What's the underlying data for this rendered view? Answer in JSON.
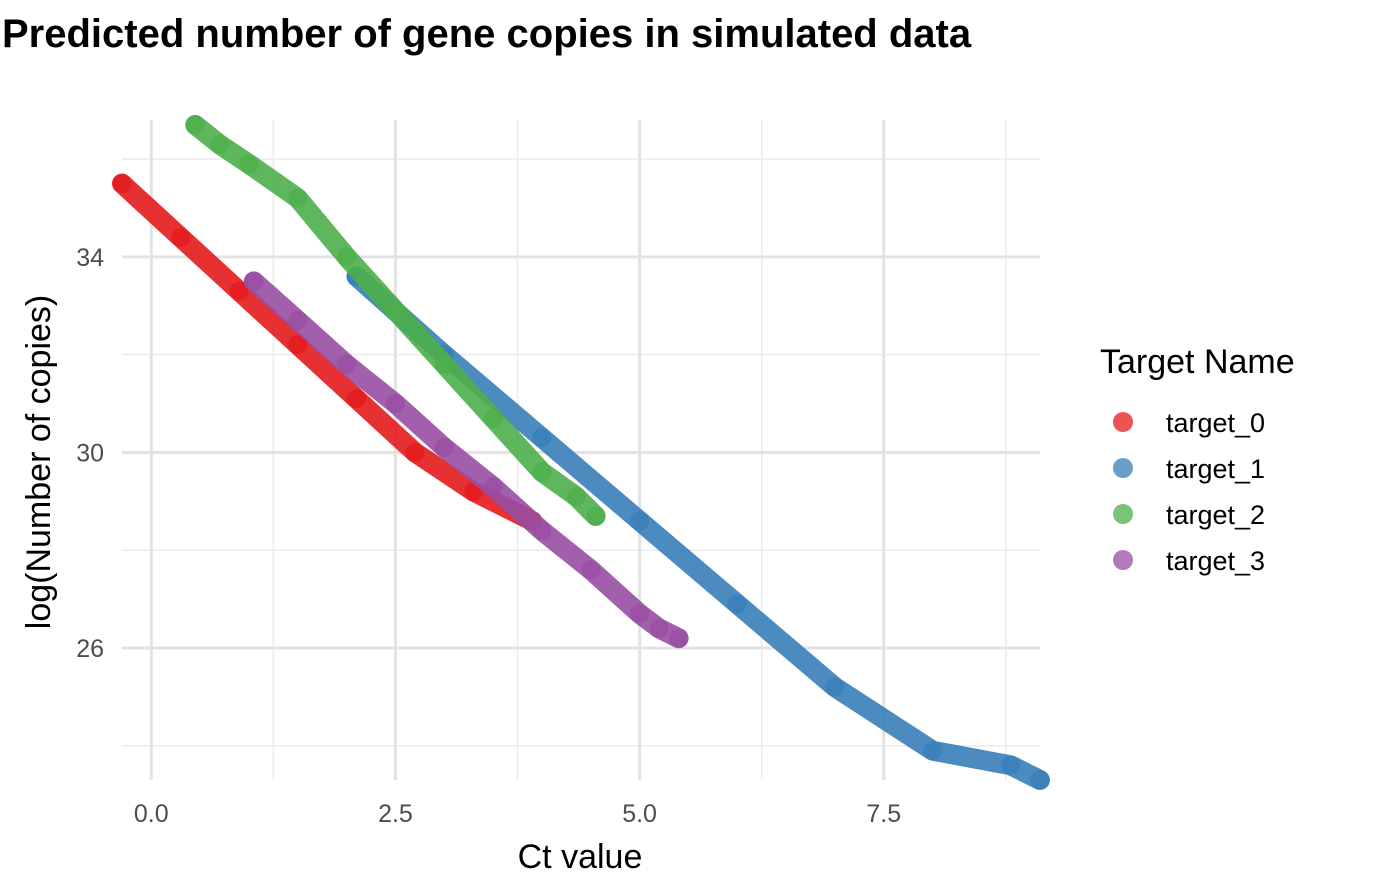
{
  "chart_data": {
    "type": "scatter",
    "title": "Predicted number of gene copies in simulated data",
    "xlabel": "Ct value",
    "ylabel": "log(Number of copies)",
    "xlim": [
      -0.3,
      9.1
    ],
    "ylim": [
      23.3,
      36.8
    ],
    "x_ticks": [
      0.0,
      2.5,
      5.0,
      7.5
    ],
    "x_tick_labels": [
      "0.0",
      "2.5",
      "5.0",
      "7.5"
    ],
    "y_ticks": [
      26,
      30,
      34
    ],
    "y_tick_labels": [
      "26",
      "30",
      "34"
    ],
    "grid": true,
    "legend": {
      "title": "Target Name",
      "placement": "right"
    },
    "series": [
      {
        "name": "target_0",
        "color": "#E41A1C",
        "x": [
          -0.3,
          0.3,
          0.9,
          1.5,
          2.1,
          2.7,
          3.3,
          3.9
        ],
        "y": [
          35.5,
          34.4,
          33.3,
          32.2,
          31.1,
          30.0,
          29.2,
          28.6
        ]
      },
      {
        "name": "target_1",
        "color": "#377EB8",
        "x": [
          2.1,
          3.0,
          4.0,
          5.0,
          6.0,
          7.0,
          8.0,
          8.8,
          9.1
        ],
        "y": [
          33.6,
          32.0,
          30.3,
          28.6,
          26.9,
          25.2,
          23.9,
          23.6,
          23.3
        ]
      },
      {
        "name": "target_2",
        "color": "#4DAF4A",
        "x": [
          0.45,
          0.7,
          1.0,
          1.5,
          2.0,
          2.5,
          3.0,
          3.5,
          4.0,
          4.35,
          4.55
        ],
        "y": [
          36.7,
          36.3,
          35.9,
          35.2,
          34.0,
          32.9,
          31.8,
          30.7,
          29.6,
          29.1,
          28.7
        ]
      },
      {
        "name": "target_3",
        "color": "#984EA3",
        "x": [
          1.05,
          1.5,
          2.0,
          2.5,
          3.0,
          3.5,
          4.0,
          4.5,
          5.0,
          5.2,
          5.4
        ],
        "y": [
          33.5,
          32.7,
          31.8,
          31.0,
          30.1,
          29.3,
          28.4,
          27.6,
          26.7,
          26.4,
          26.2
        ]
      }
    ]
  }
}
